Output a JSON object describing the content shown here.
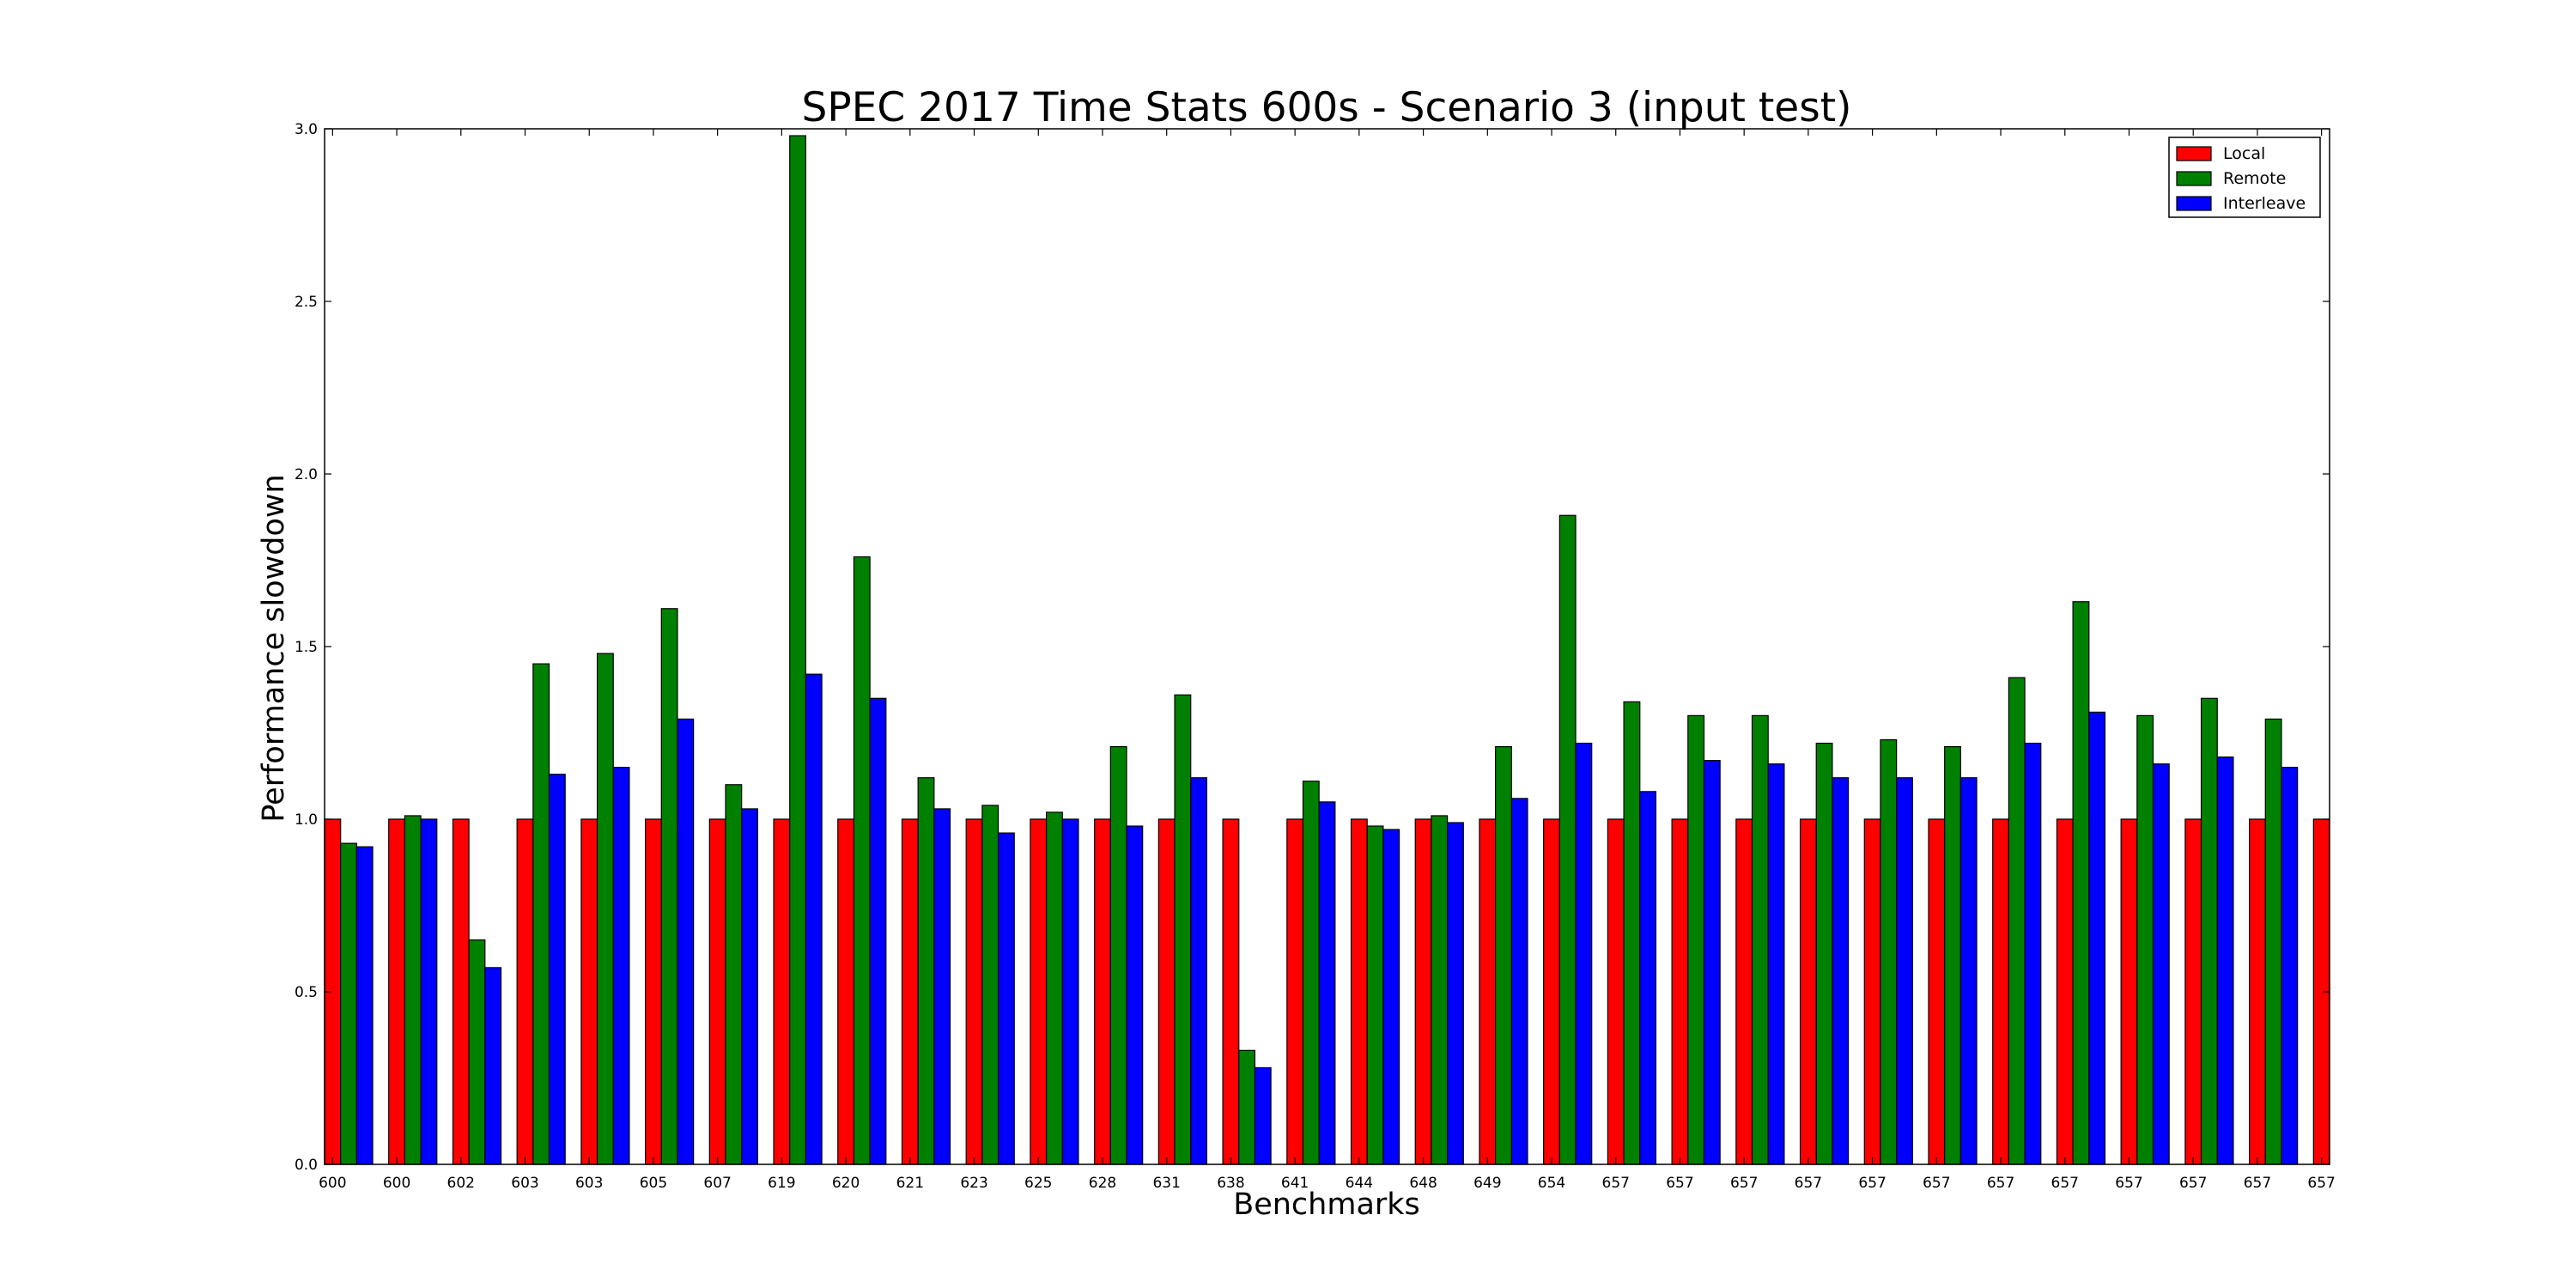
{
  "chart_data": {
    "type": "bar",
    "title": "SPEC 2017 Time Stats 600s - Scenario 3 (input test)",
    "xlabel": "Benchmarks",
    "ylabel": "Performance slowdown",
    "ylim": [
      0,
      3.0
    ],
    "yticks": [
      "0.0",
      "0.5",
      "1.0",
      "1.5",
      "2.0",
      "2.5",
      "3.0"
    ],
    "grid": false,
    "legend_position": "top-right",
    "categories": [
      "600",
      "600",
      "602",
      "603",
      "603",
      "605",
      "607",
      "619",
      "620",
      "621",
      "623",
      "625",
      "628",
      "631",
      "638",
      "641",
      "644",
      "648",
      "649",
      "654",
      "657",
      "657",
      "657",
      "657",
      "657",
      "657",
      "657",
      "657",
      "657",
      "657",
      "657",
      "657"
    ],
    "series": [
      {
        "name": "Local",
        "color": "#ff0000",
        "values": [
          1.0,
          1.0,
          1.0,
          1.0,
          1.0,
          1.0,
          1.0,
          1.0,
          1.0,
          1.0,
          1.0,
          1.0,
          1.0,
          1.0,
          1.0,
          1.0,
          1.0,
          1.0,
          1.0,
          1.0,
          1.0,
          1.0,
          1.0,
          1.0,
          1.0,
          1.0,
          1.0,
          1.0,
          1.0,
          1.0,
          1.0,
          1.0
        ]
      },
      {
        "name": "Remote",
        "color": "#008000",
        "values": [
          0.93,
          1.01,
          0.65,
          1.45,
          1.48,
          1.61,
          1.1,
          2.98,
          1.76,
          1.12,
          1.04,
          1.02,
          1.21,
          1.36,
          0.33,
          1.11,
          0.98,
          1.01,
          1.21,
          1.88,
          1.34,
          1.3,
          1.3,
          1.22,
          1.23,
          1.21,
          1.41,
          1.63,
          1.3,
          1.35,
          1.29,
          null
        ]
      },
      {
        "name": "Interleave",
        "color": "#0000ff",
        "values": [
          0.92,
          1.0,
          0.57,
          1.13,
          1.15,
          1.29,
          1.03,
          1.42,
          1.35,
          1.03,
          0.96,
          1.0,
          0.98,
          1.12,
          0.28,
          1.05,
          0.97,
          0.99,
          1.06,
          1.22,
          1.08,
          1.17,
          1.16,
          1.12,
          1.12,
          1.12,
          1.22,
          1.31,
          1.16,
          1.18,
          1.15,
          null
        ]
      }
    ]
  }
}
